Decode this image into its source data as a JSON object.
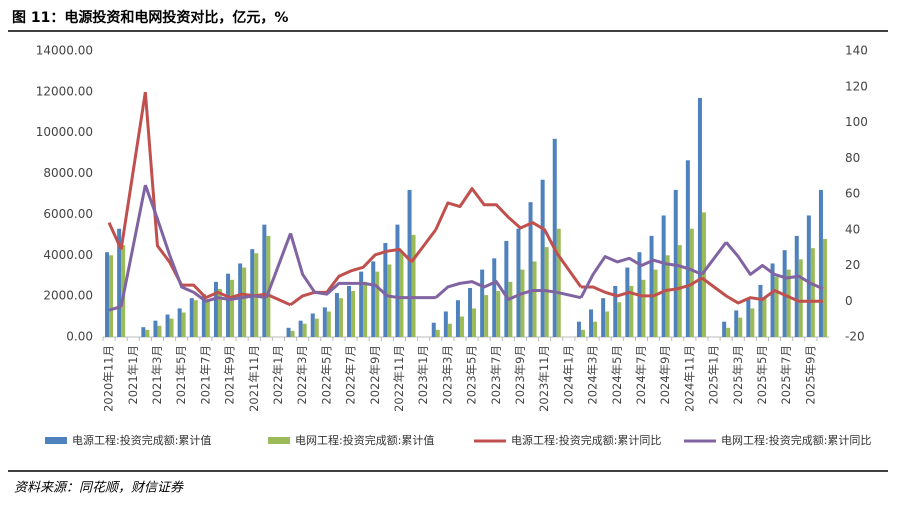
{
  "chart_data": {
    "type": "bar-line",
    "title": "图 11：电源投资和电网投资对比，亿元，%",
    "source": "资料来源：同花顺，财信证券",
    "categories": [
      "2020年11月",
      null,
      "2021年1月",
      null,
      "2021年3月",
      null,
      "2021年5月",
      null,
      "2021年7月",
      null,
      "2021年9月",
      null,
      "2021年11月",
      null,
      "2022年1月",
      null,
      "2022年3月",
      null,
      "2022年5月",
      null,
      "2022年7月",
      null,
      "2022年9月",
      null,
      "2022年11月",
      null,
      "2023年1月",
      null,
      "2023年3月",
      null,
      "2023年5月",
      null,
      "2023年7月",
      null,
      "2023年9月",
      null,
      "2023年11月",
      null,
      "2024年1月",
      null,
      "2024年3月",
      null,
      "2024年5月",
      null,
      "2024年7月",
      null,
      "2024年9月",
      null,
      "2024年11月",
      null,
      "2025年1月",
      null,
      "2025年3月",
      null,
      "2025年5月",
      null,
      "2025年7月",
      null,
      "2025年9月",
      null
    ],
    "series": [
      {
        "name": "电源工程:投资完成额:累计值",
        "kind": "bar",
        "color": "#4f81bd",
        "values": [
          4150,
          5300,
          null,
          480,
          800,
          1100,
          1400,
          1900,
          2100,
          2700,
          3100,
          3600,
          4300,
          5500,
          null,
          450,
          800,
          1150,
          1450,
          2150,
          2500,
          3200,
          3700,
          4600,
          5500,
          7200,
          null,
          700,
          1250,
          1800,
          2400,
          3300,
          3850,
          4700,
          5300,
          6600,
          7700,
          9700,
          null,
          750,
          1350,
          1900,
          2500,
          3400,
          4150,
          4950,
          5950,
          7200,
          8650,
          11700,
          null,
          750,
          1300,
          1900,
          2550,
          3600,
          4250,
          4950,
          5950,
          7200
        ]
      },
      {
        "name": "电网工程:投资完成额:累计值",
        "kind": "bar",
        "color": "#9bbb59",
        "values": [
          4000,
          4500,
          null,
          350,
          550,
          900,
          1200,
          1800,
          1850,
          2350,
          2800,
          3400,
          4100,
          4950,
          null,
          300,
          650,
          900,
          1250,
          1900,
          2250,
          2700,
          3200,
          3550,
          4200,
          5000,
          null,
          350,
          650,
          1000,
          1400,
          2050,
          2250,
          2700,
          3300,
          3700,
          4400,
          5300,
          null,
          350,
          750,
          1250,
          1700,
          2500,
          2800,
          3300,
          4000,
          4500,
          5300,
          6100,
          null,
          450,
          950,
          1400,
          1900,
          2950,
          3300,
          3800,
          4350,
          4800
        ]
      },
      {
        "name": "电源工程:投资完成额:累计同比",
        "kind": "line",
        "axis": "y2",
        "color": "#c0504d",
        "values": [
          44,
          29,
          null,
          117,
          31,
          22,
          9,
          9,
          2,
          5,
          2,
          4,
          3,
          4,
          null,
          -2,
          3,
          5,
          5,
          14,
          17,
          19,
          26,
          28,
          29,
          22,
          null,
          40,
          55,
          53,
          63,
          54,
          54,
          47,
          41,
          44,
          40,
          27,
          null,
          8,
          8,
          5,
          3,
          5,
          3,
          3,
          6,
          7,
          9,
          13,
          null,
          3,
          -1,
          2,
          1,
          6,
          3,
          0,
          0,
          0
        ]
      },
      {
        "name": "电网工程:投资完成额:累计同比",
        "kind": "line",
        "axis": "y2",
        "color": "#8064a2",
        "values": [
          -5,
          -3,
          null,
          65,
          46,
          26,
          8,
          5,
          0,
          2,
          1,
          2,
          3,
          2,
          null,
          38,
          15,
          5,
          4,
          10,
          10,
          10,
          9,
          3,
          2,
          2,
          null,
          2,
          8,
          10,
          11,
          8,
          11,
          1,
          4,
          6,
          6,
          5,
          null,
          2,
          15,
          25,
          22,
          24,
          20,
          23,
          21,
          20,
          18,
          15,
          null,
          33,
          25,
          15,
          20,
          15,
          13,
          14,
          10,
          7
        ]
      }
    ],
    "ylim": [
      0,
      14000
    ],
    "yticks": [
      {
        "value": 0,
        "label": "0.00"
      },
      {
        "value": 2000,
        "label": "2000.00"
      },
      {
        "value": 4000,
        "label": "4000.00"
      },
      {
        "value": 6000,
        "label": "6000.00"
      },
      {
        "value": 8000,
        "label": "8000.00"
      },
      {
        "value": 10000,
        "label": "10000.00"
      },
      {
        "value": 12000,
        "label": "12000.00"
      },
      {
        "value": 14000,
        "label": "14000.00"
      }
    ],
    "y2lim": [
      -20,
      140
    ],
    "y2ticks": [
      -20,
      0,
      20,
      40,
      60,
      80,
      100,
      120,
      140
    ],
    "grid": false
  }
}
